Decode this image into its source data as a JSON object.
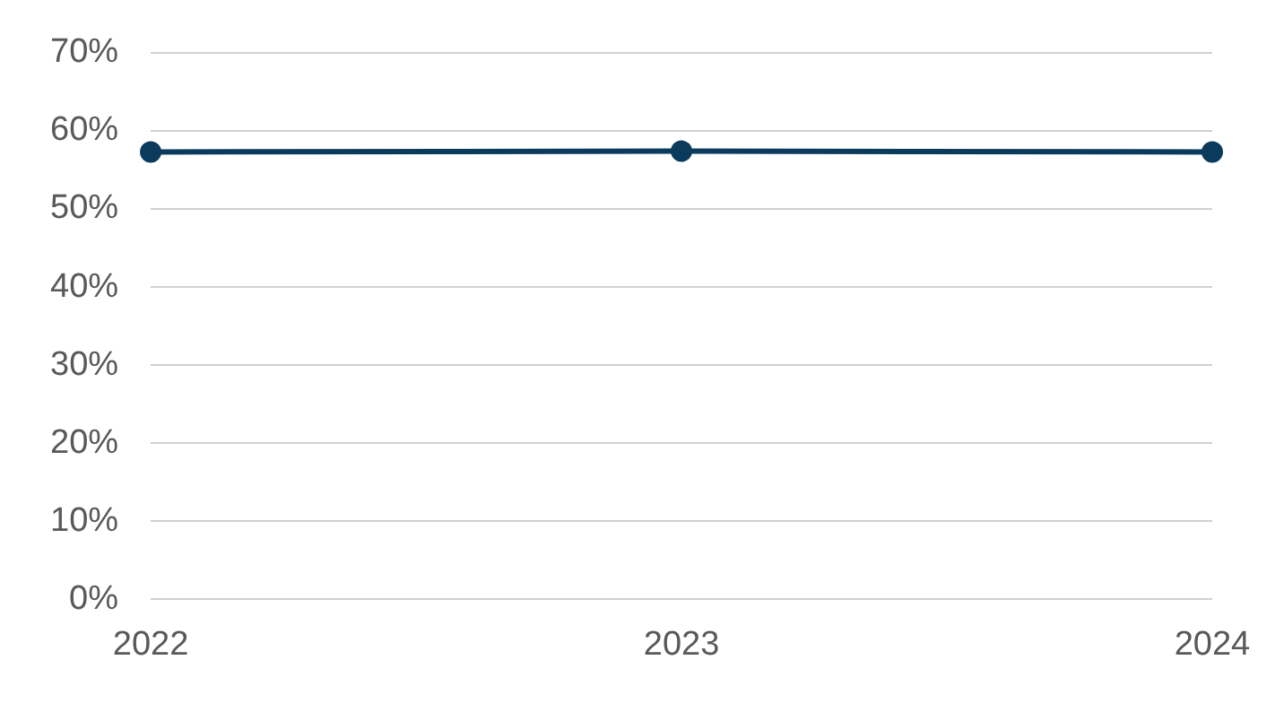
{
  "chart_data": {
    "type": "line",
    "categories": [
      "2022",
      "2023",
      "2024"
    ],
    "series": [
      {
        "color": "#0b3b5c",
        "values": [
          57.3,
          57.4,
          57.3
        ]
      }
    ],
    "ylim": [
      0,
      70
    ],
    "yticks": [
      {
        "value": 0,
        "label": "0%"
      },
      {
        "value": 10,
        "label": "10%"
      },
      {
        "value": 20,
        "label": "20%"
      },
      {
        "value": 30,
        "label": "30%"
      },
      {
        "value": 40,
        "label": "40%"
      },
      {
        "value": 50,
        "label": "50%"
      },
      {
        "value": 60,
        "label": "60%"
      },
      {
        "value": 70,
        "label": "70%"
      }
    ],
    "grid": "y",
    "marker": "circle",
    "line_style": "solid",
    "legend": false
  }
}
